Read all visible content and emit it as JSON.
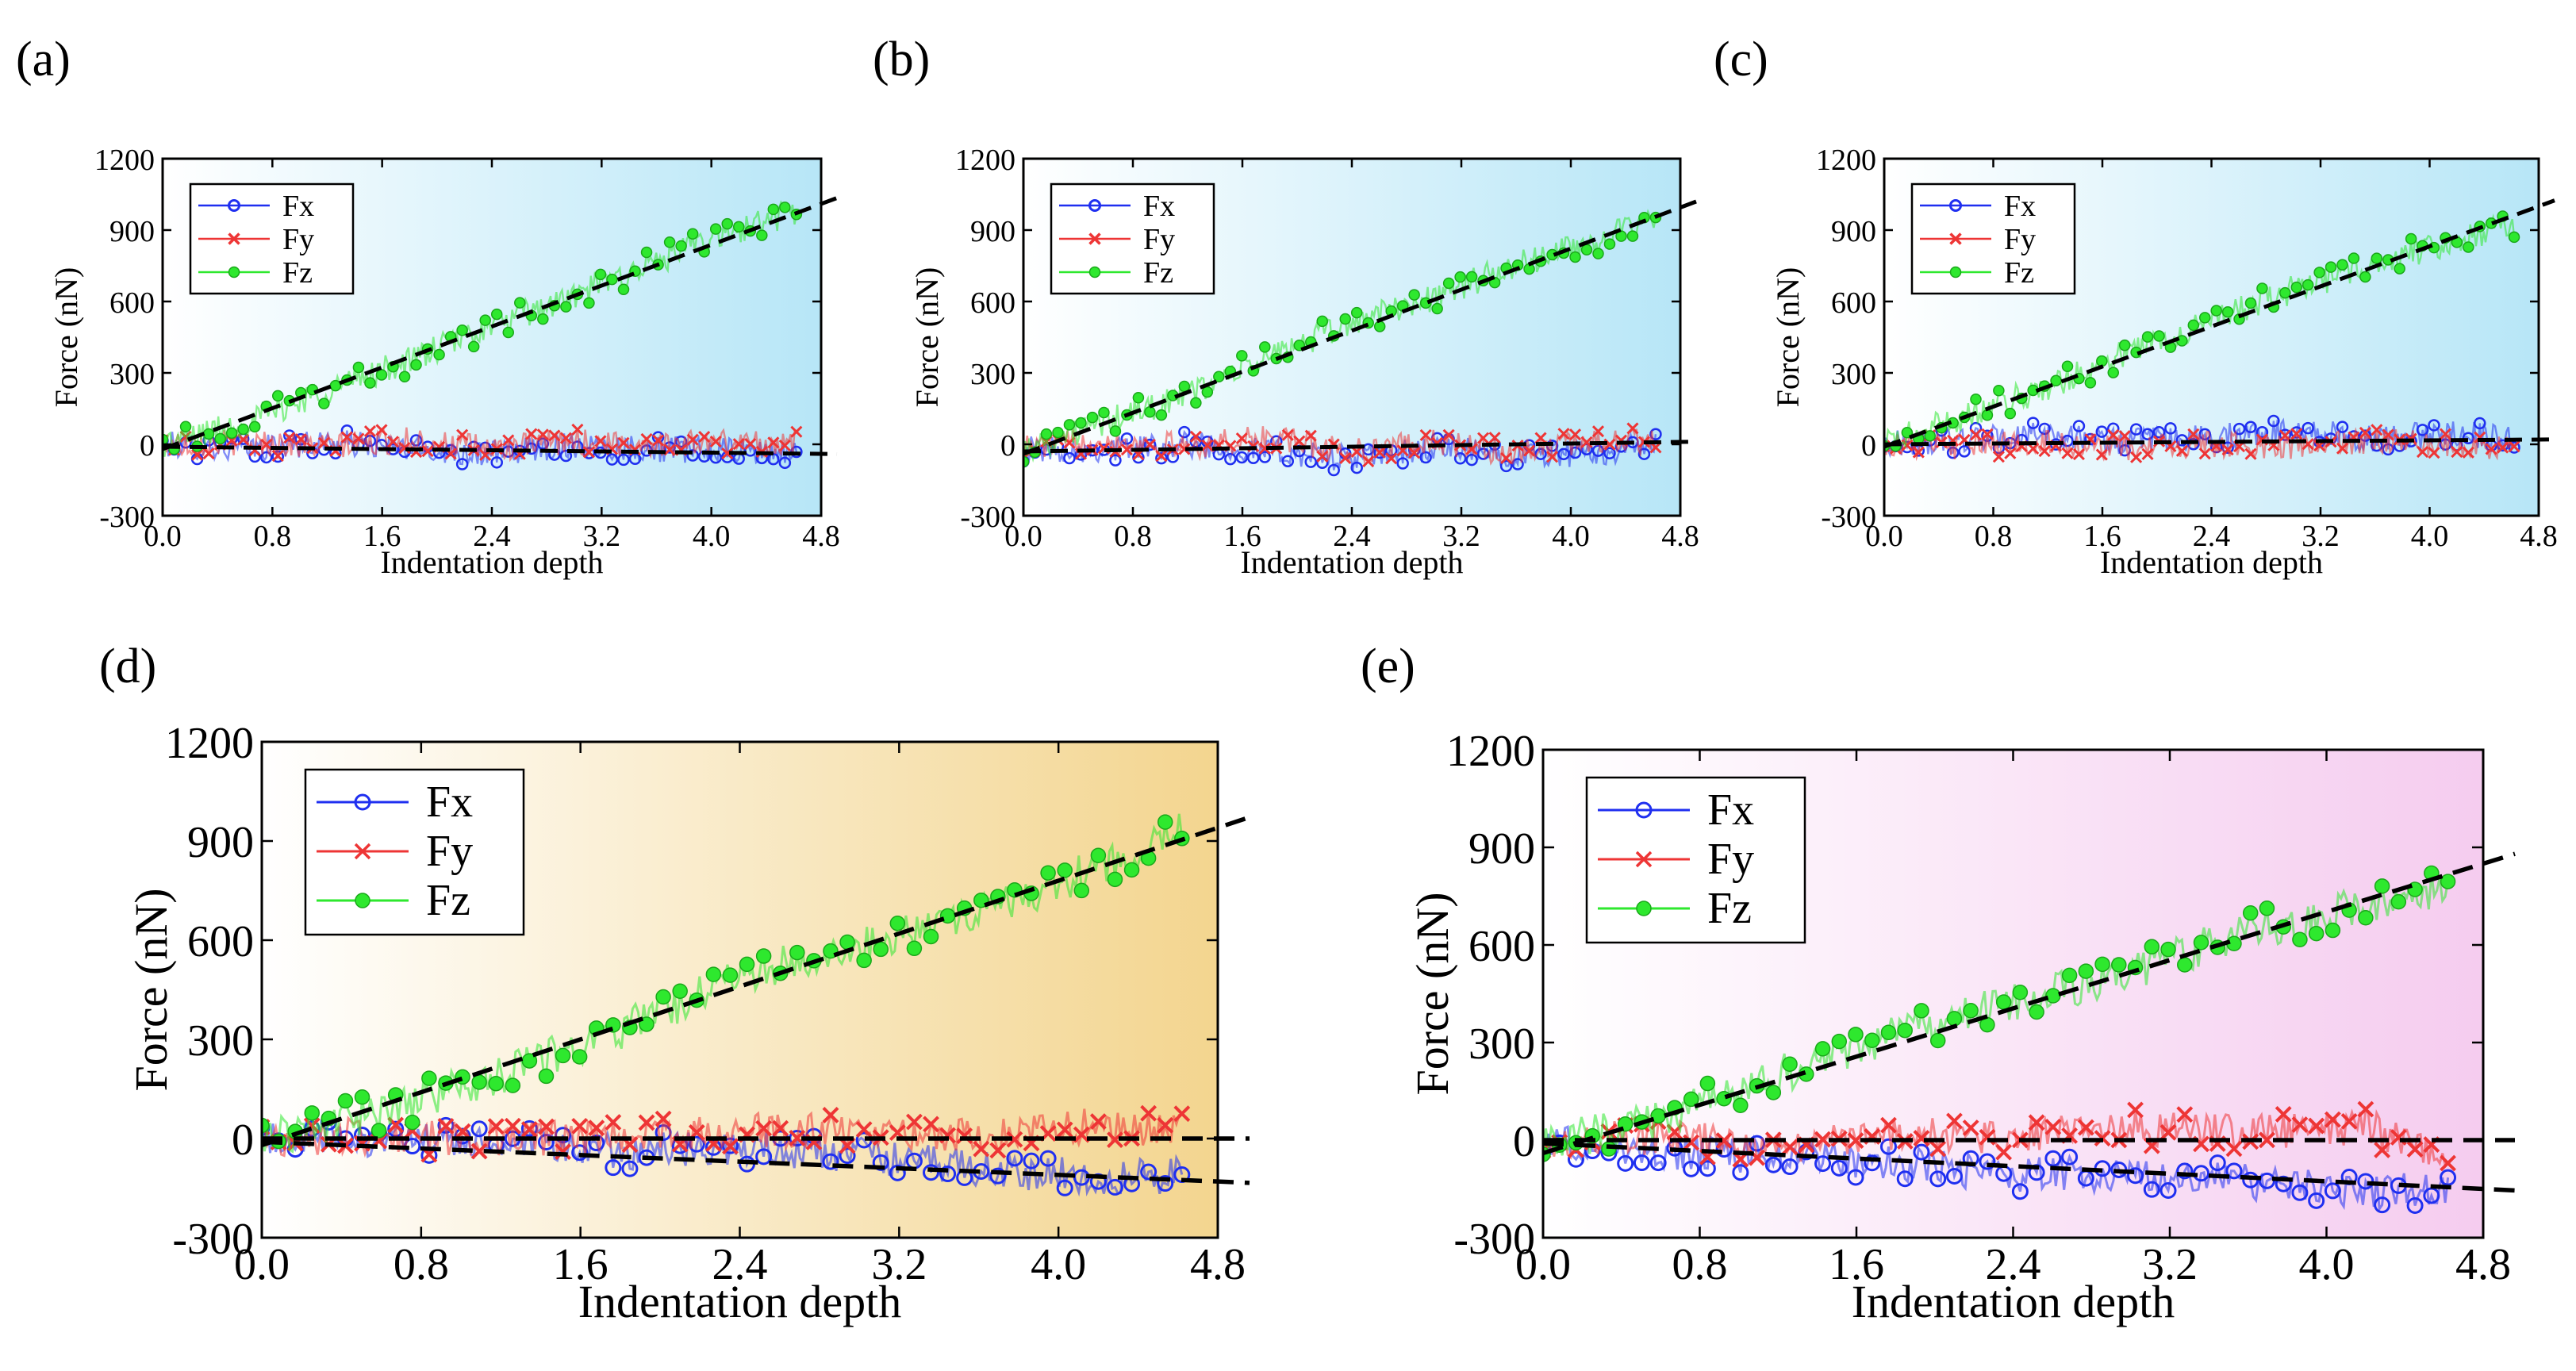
{
  "figure": {
    "panels": [
      {
        "id": "a",
        "letter": "(a)",
        "gradient": [
          "#ffffff",
          "#b7e6f7"
        ],
        "zFinal": 1010,
        "xFinal": -40,
        "yFinal": 0
      },
      {
        "id": "b",
        "letter": "(b)",
        "gradient": [
          "#ffffff",
          "#b7e6f7"
        ],
        "zFinal": 995,
        "xFinal": 0,
        "yFinal": 0
      },
      {
        "id": "c",
        "letter": "(c)",
        "gradient": [
          "#ffffff",
          "#b7e6f7"
        ],
        "zFinal": 1000,
        "xFinal": 20,
        "yFinal": 20
      },
      {
        "id": "d",
        "letter": "(d)",
        "gradient": [
          "#ffffff",
          "#f3d58f"
        ],
        "zFinal": 940,
        "xFinal": -130,
        "yFinal": 0
      },
      {
        "id": "e",
        "letter": "(e)",
        "gradient": [
          "#ffffff",
          "#f5ccef"
        ],
        "zFinal": 850,
        "xFinal": -150,
        "yFinal": 0
      }
    ],
    "colors": {
      "Fx": "#1f2ff0",
      "Fy": "#ee3535",
      "Fz": "#2ee82e",
      "fit": "#000000"
    }
  },
  "chart_data": [
    {
      "type": "line",
      "title": "(a)",
      "xlabel": "Indentation depth",
      "ylabel": "Force (nN)",
      "xlim": [
        0,
        4.8
      ],
      "ylim": [
        -300,
        1200
      ],
      "xticks": [
        "0.0",
        "0.8",
        "1.6",
        "2.4",
        "3.2",
        "4.0",
        "4.8"
      ],
      "yticks": [
        "-300",
        "0",
        "300",
        "600",
        "900",
        "1200"
      ],
      "legend": "top-left",
      "x": [
        0.0,
        0.6,
        1.2,
        1.8,
        2.4,
        3.0,
        3.6,
        4.2,
        4.6
      ],
      "series": [
        {
          "name": "Fx",
          "values": [
            0,
            -20,
            10,
            -20,
            -40,
            0,
            -20,
            -30,
            -40
          ]
        },
        {
          "name": "Fy",
          "values": [
            0,
            10,
            -10,
            20,
            -20,
            10,
            0,
            10,
            0
          ]
        },
        {
          "name": "Fz",
          "values": [
            0,
            90,
            230,
            350,
            500,
            620,
            770,
            900,
            980
          ]
        }
      ],
      "fits": [
        {
          "name": "Fz fit",
          "x": [
            0,
            4.8
          ],
          "y": [
            -20,
            1010
          ]
        },
        {
          "name": "Fx/Fy fit",
          "x": [
            0,
            4.8
          ],
          "y": [
            -10,
            -40
          ]
        }
      ]
    },
    {
      "type": "line",
      "title": "(b)",
      "xlabel": "Indentation depth",
      "ylabel": "Force (nN)",
      "xlim": [
        0,
        4.8
      ],
      "ylim": [
        -300,
        1200
      ],
      "xticks": [
        "0.0",
        "0.8",
        "1.6",
        "2.4",
        "3.2",
        "4.0",
        "4.8"
      ],
      "yticks": [
        "-300",
        "0",
        "300",
        "600",
        "900",
        "1200"
      ],
      "legend": "top-left",
      "x": [
        0.0,
        0.6,
        1.2,
        1.8,
        2.4,
        3.0,
        3.6,
        4.2,
        4.6
      ],
      "series": [
        {
          "name": "Fx",
          "values": [
            -20,
            -20,
            0,
            -30,
            -60,
            -20,
            -40,
            -40,
            0
          ]
        },
        {
          "name": "Fy",
          "values": [
            -10,
            20,
            -10,
            30,
            -30,
            10,
            -40,
            20,
            10
          ]
        },
        {
          "name": "Fz",
          "values": [
            -20,
            90,
            210,
            370,
            510,
            620,
            750,
            860,
            930
          ]
        }
      ],
      "fits": [
        {
          "name": "Fz fit",
          "x": [
            0,
            4.8
          ],
          "y": [
            -40,
            995
          ]
        },
        {
          "name": "Fx/Fy fit",
          "x": [
            0,
            4.8
          ],
          "y": [
            -30,
            10
          ]
        }
      ]
    },
    {
      "type": "line",
      "title": "(c)",
      "xlabel": "Indentation depth",
      "ylabel": "Force (nN)",
      "xlim": [
        0,
        4.8
      ],
      "ylim": [
        -300,
        1200
      ],
      "xticks": [
        "0.0",
        "0.8",
        "1.6",
        "2.4",
        "3.2",
        "4.0",
        "4.8"
      ],
      "yticks": [
        "-300",
        "0",
        "300",
        "600",
        "900",
        "1200"
      ],
      "legend": "top-left",
      "x": [
        0.0,
        0.6,
        1.2,
        1.8,
        2.4,
        3.0,
        3.6,
        4.2,
        4.6
      ],
      "series": [
        {
          "name": "Fx",
          "values": [
            0,
            20,
            40,
            10,
            30,
            60,
            20,
            50,
            20
          ]
        },
        {
          "name": "Fy",
          "values": [
            0,
            -10,
            10,
            -20,
            0,
            -10,
            10,
            0,
            -20
          ]
        },
        {
          "name": "Fz",
          "values": [
            0,
            120,
            240,
            390,
            520,
            650,
            760,
            860,
            930
          ]
        }
      ],
      "fits": [
        {
          "name": "Fz fit",
          "x": [
            0,
            4.8
          ],
          "y": [
            -10,
            1000
          ]
        },
        {
          "name": "Fx/Fy fit",
          "x": [
            0,
            4.8
          ],
          "y": [
            0,
            20
          ]
        }
      ]
    },
    {
      "type": "line",
      "title": "(d)",
      "xlabel": "Indentation depth",
      "ylabel": "Force (nN)",
      "xlim": [
        0,
        4.8
      ],
      "ylim": [
        -300,
        1200
      ],
      "xticks": [
        "0.0",
        "0.8",
        "1.6",
        "2.4",
        "3.2",
        "4.0",
        "4.8"
      ],
      "yticks": [
        "-300",
        "0",
        "300",
        "600",
        "900",
        "1200"
      ],
      "legend": "top-left",
      "x": [
        0.0,
        0.6,
        1.2,
        1.8,
        2.4,
        3.0,
        3.6,
        4.2,
        4.6
      ],
      "series": [
        {
          "name": "Fx",
          "values": [
            0,
            0,
            -20,
            -40,
            -30,
            -50,
            -90,
            -120,
            -110
          ]
        },
        {
          "name": "Fy",
          "values": [
            0,
            10,
            -10,
            10,
            20,
            30,
            10,
            40,
            30
          ]
        },
        {
          "name": "Fz",
          "values": [
            0,
            80,
            190,
            330,
            490,
            590,
            680,
            820,
            930
          ]
        }
      ],
      "fits": [
        {
          "name": "Fz fit",
          "x": [
            0,
            4.8
          ],
          "y": [
            -20,
            940
          ]
        },
        {
          "name": "Fx fit",
          "x": [
            0,
            4.8
          ],
          "y": [
            -10,
            -130
          ]
        },
        {
          "name": "Fy fit",
          "x": [
            0,
            4.8
          ],
          "y": [
            0,
            0
          ]
        }
      ]
    },
    {
      "type": "line",
      "title": "(e)",
      "xlabel": "Indentation depth",
      "ylabel": "Force (nN)",
      "xlim": [
        0,
        4.8
      ],
      "ylim": [
        -300,
        1200
      ],
      "xticks": [
        "0.0",
        "0.8",
        "1.6",
        "2.4",
        "3.2",
        "4.0",
        "4.8"
      ],
      "yticks": [
        "-300",
        "0",
        "300",
        "600",
        "900",
        "1200"
      ],
      "legend": "top-left",
      "x": [
        0.0,
        0.6,
        1.2,
        1.8,
        2.4,
        3.0,
        3.6,
        4.2,
        4.6
      ],
      "series": [
        {
          "name": "Fx",
          "values": [
            0,
            -40,
            -50,
            -70,
            -110,
            -100,
            -130,
            -160,
            -150
          ]
        },
        {
          "name": "Fy",
          "values": [
            0,
            10,
            -20,
            20,
            10,
            40,
            20,
            40,
            -40
          ]
        },
        {
          "name": "Fz",
          "values": [
            -10,
            60,
            200,
            330,
            420,
            520,
            640,
            720,
            780
          ]
        }
      ],
      "fits": [
        {
          "name": "Fz fit",
          "x": [
            0,
            4.8
          ],
          "y": [
            -40,
            850
          ]
        },
        {
          "name": "Fx fit",
          "x": [
            0,
            4.8
          ],
          "y": [
            -10,
            -150
          ]
        },
        {
          "name": "Fy fit",
          "x": [
            0,
            4.8
          ],
          "y": [
            0,
            0
          ]
        }
      ]
    }
  ]
}
